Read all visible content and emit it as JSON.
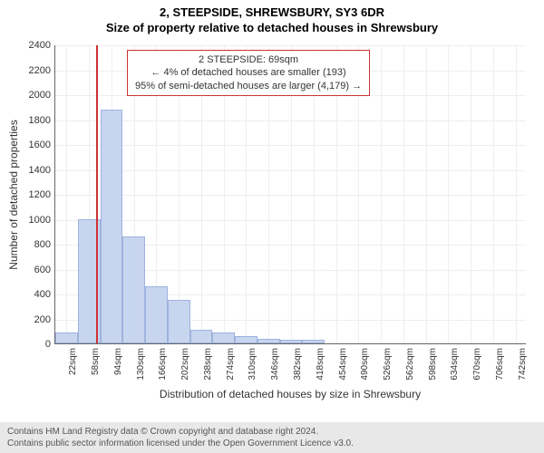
{
  "address": "2, STEEPSIDE, SHREWSBURY, SY3 6DR",
  "subtitle": "Size of property relative to detached houses in Shrewsbury",
  "chart": {
    "type": "histogram",
    "ylabel": "Number of detached properties",
    "xlabel": "Distribution of detached houses by size in Shrewsbury",
    "ylim": [
      0,
      2400
    ],
    "ytick_step": 200,
    "yticks": [
      0,
      200,
      400,
      600,
      800,
      1000,
      1200,
      1400,
      1600,
      1800,
      2000,
      2200,
      2400
    ],
    "xticks": [
      "22sqm",
      "58sqm",
      "94sqm",
      "130sqm",
      "166sqm",
      "202sqm",
      "238sqm",
      "274sqm",
      "310sqm",
      "346sqm",
      "382sqm",
      "418sqm",
      "454sqm",
      "490sqm",
      "526sqm",
      "562sqm",
      "598sqm",
      "634sqm",
      "670sqm",
      "706sqm",
      "742sqm"
    ],
    "xtick_values": [
      22,
      58,
      94,
      130,
      166,
      202,
      238,
      274,
      310,
      346,
      382,
      418,
      454,
      490,
      526,
      562,
      598,
      634,
      670,
      706,
      742
    ],
    "xlim": [
      4,
      760
    ],
    "bars": [
      {
        "start": 4,
        "end": 40,
        "count": 90
      },
      {
        "start": 40,
        "end": 76,
        "count": 1000
      },
      {
        "start": 76,
        "end": 112,
        "count": 1880
      },
      {
        "start": 112,
        "end": 148,
        "count": 860
      },
      {
        "start": 148,
        "end": 184,
        "count": 460
      },
      {
        "start": 184,
        "end": 220,
        "count": 350
      },
      {
        "start": 220,
        "end": 256,
        "count": 110
      },
      {
        "start": 256,
        "end": 292,
        "count": 90
      },
      {
        "start": 292,
        "end": 328,
        "count": 60
      },
      {
        "start": 328,
        "end": 364,
        "count": 40
      },
      {
        "start": 364,
        "end": 400,
        "count": 30
      },
      {
        "start": 400,
        "end": 436,
        "count": 30
      }
    ],
    "bar_fill": "#c8d5ef",
    "bar_border": "#9db2dd",
    "grid_color": "#eeeeee",
    "background_color": "#ffffff",
    "marker_value": 69,
    "marker_color": "#cc3333",
    "annotation": {
      "line1": "2 STEEPSIDE: 69sqm",
      "line2": "← 4% of detached houses are smaller (193)",
      "line3": "95% of semi-detached houses are larger (4,179) →",
      "border_color": "#cc3333"
    },
    "title_fontsize": 13,
    "label_fontsize": 12,
    "tick_fontsize": 11
  },
  "footer": {
    "line1": "Contains HM Land Registry data © Crown copyright and database right 2024.",
    "line2": "Contains public sector information licensed under the Open Government Licence v3.0."
  }
}
